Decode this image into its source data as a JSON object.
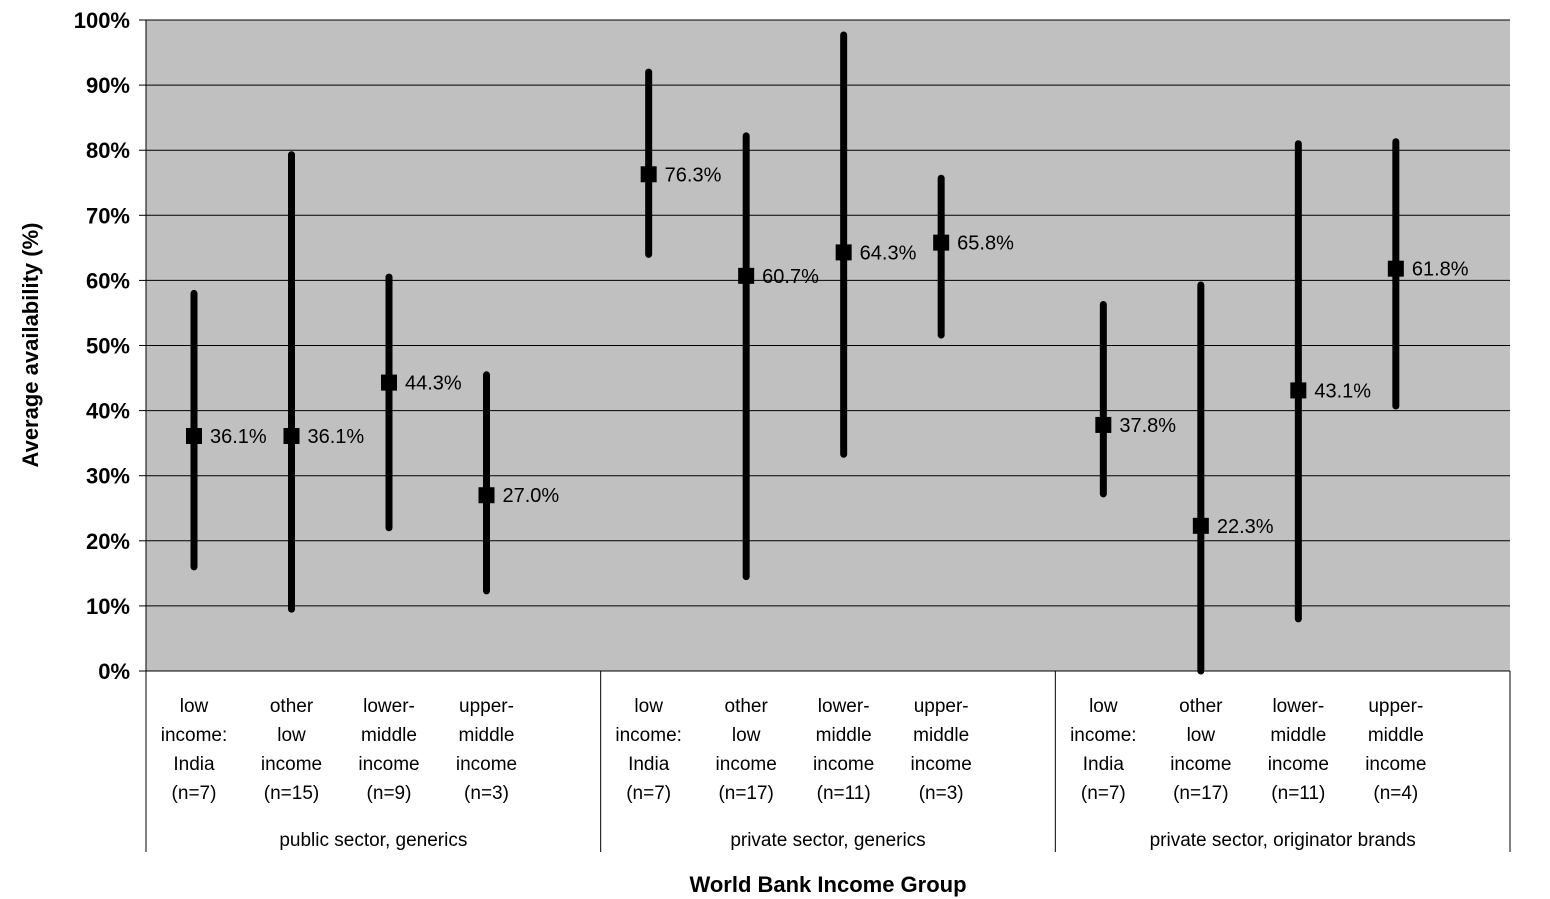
{
  "chart_data": {
    "type": "scatter",
    "xlabel": "World Bank Income Group",
    "ylabel": "Average availability (%)",
    "ylim": [
      0,
      100
    ],
    "yticks": [
      "0%",
      "10%",
      "20%",
      "30%",
      "40%",
      "50%",
      "60%",
      "70%",
      "80%",
      "90%",
      "100%"
    ],
    "grid": true,
    "plot_background": "#c0c0c0",
    "mark_color": "#000000",
    "groups": [
      {
        "label": "public sector, generics",
        "categories": [
          {
            "lines": [
              "low",
              "income:",
              "India",
              "(n=7)"
            ],
            "value": 36.1,
            "label": "36.1%",
            "low": 16,
            "high": 58
          },
          {
            "lines": [
              "other",
              "low",
              "income",
              "(n=15)"
            ],
            "value": 36.1,
            "label": "36.1%",
            "low": 9.5,
            "high": 79.3
          },
          {
            "lines": [
              "lower-",
              "middle",
              "income",
              "(n=9)"
            ],
            "value": 44.3,
            "label": "44.3%",
            "low": 22,
            "high": 60.5
          },
          {
            "lines": [
              "upper-",
              "middle",
              "income",
              "(n=3)"
            ],
            "value": 27.0,
            "label": "27.0%",
            "low": 12.3,
            "high": 45.5
          }
        ]
      },
      {
        "label": "private sector, generics",
        "categories": [
          {
            "lines": [
              "low",
              "income:",
              "India",
              "(n=7)"
            ],
            "value": 76.3,
            "label": "76.3%",
            "low": 64,
            "high": 92
          },
          {
            "lines": [
              "other",
              "low",
              "income",
              "(n=17)"
            ],
            "value": 60.7,
            "label": "60.7%",
            "low": 14.5,
            "high": 82.2
          },
          {
            "lines": [
              "lower-",
              "middle",
              "income",
              "(n=11)"
            ],
            "value": 64.3,
            "label": "64.3%",
            "low": 33.3,
            "high": 97.7
          },
          {
            "lines": [
              "upper-",
              "middle",
              "income",
              "(n=3)"
            ],
            "value": 65.8,
            "label": "65.8%",
            "low": 51.6,
            "high": 75.7
          }
        ]
      },
      {
        "label": "private sector, originator brands",
        "categories": [
          {
            "lines": [
              "low",
              "income:",
              "India",
              "(n=7)"
            ],
            "value": 37.8,
            "label": "37.8%",
            "low": 27.2,
            "high": 56.3
          },
          {
            "lines": [
              "other",
              "low",
              "income",
              "(n=17)"
            ],
            "value": 22.3,
            "label": "22.3%",
            "low": 0,
            "high": 59.3
          },
          {
            "lines": [
              "lower-",
              "middle",
              "income",
              "(n=11)"
            ],
            "value": 43.1,
            "label": "43.1%",
            "low": 8,
            "high": 81
          },
          {
            "lines": [
              "upper-",
              "middle",
              "income",
              "(n=4)"
            ],
            "value": 61.8,
            "label": "61.8%",
            "low": 40.7,
            "high": 81.3
          }
        ]
      }
    ]
  }
}
